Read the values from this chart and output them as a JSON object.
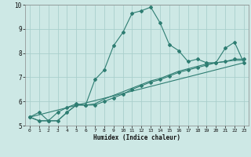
{
  "xlabel": "Humidex (Indice chaleur)",
  "ylabel": "",
  "bg_color": "#cde8e5",
  "grid_color": "#aacfcc",
  "line_color": "#2e7d72",
  "xlim": [
    -0.5,
    23.5
  ],
  "ylim": [
    5,
    10
  ],
  "yticks": [
    5,
    6,
    7,
    8,
    9,
    10
  ],
  "xticks": [
    0,
    1,
    2,
    3,
    4,
    5,
    6,
    7,
    8,
    9,
    10,
    11,
    12,
    13,
    14,
    15,
    16,
    17,
    18,
    19,
    20,
    21,
    22,
    23
  ],
  "series1_x": [
    0,
    1,
    2,
    3,
    4,
    5,
    6,
    7,
    8,
    9,
    10,
    11,
    12,
    13,
    14,
    15,
    16,
    17,
    18,
    19,
    20,
    21,
    22,
    23
  ],
  "series1_y": [
    5.35,
    5.55,
    5.2,
    5.55,
    5.75,
    5.9,
    5.85,
    6.9,
    7.3,
    8.3,
    8.85,
    9.65,
    9.75,
    9.9,
    9.25,
    8.35,
    8.1,
    7.65,
    7.75,
    7.6,
    7.6,
    8.2,
    8.45,
    7.6
  ],
  "series2_x": [
    0,
    1,
    2,
    3,
    4,
    5,
    6,
    7,
    8,
    9,
    10,
    11,
    12,
    13,
    14,
    15,
    16,
    17,
    18,
    19,
    20,
    21,
    22,
    23
  ],
  "series2_y": [
    5.35,
    5.2,
    5.2,
    5.2,
    5.55,
    5.85,
    5.85,
    5.85,
    6.0,
    6.15,
    6.3,
    6.5,
    6.65,
    6.8,
    6.9,
    7.05,
    7.2,
    7.3,
    7.4,
    7.5,
    7.6,
    7.65,
    7.75,
    7.75
  ],
  "series3_x": [
    0,
    1,
    2,
    3,
    4,
    5,
    6,
    7,
    8,
    9,
    10,
    11,
    12,
    13,
    14,
    15,
    16,
    17,
    18,
    19,
    20,
    21,
    22,
    23
  ],
  "series3_y": [
    5.35,
    5.2,
    5.2,
    5.2,
    5.55,
    5.85,
    5.85,
    5.9,
    6.1,
    6.25,
    6.4,
    6.55,
    6.7,
    6.85,
    6.95,
    7.1,
    7.25,
    7.35,
    7.45,
    7.55,
    7.6,
    7.65,
    7.7,
    7.7
  ],
  "series4_x": [
    0,
    23
  ],
  "series4_y": [
    5.35,
    7.6
  ]
}
